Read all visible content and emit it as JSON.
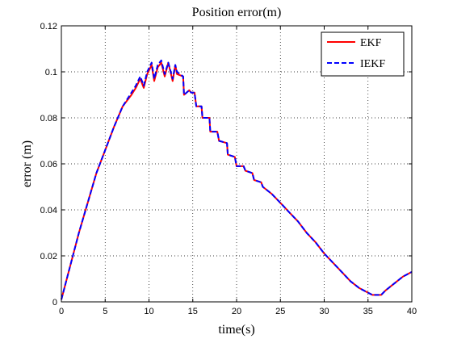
{
  "chart_data": {
    "type": "line",
    "title": "Position error(m)",
    "xlabel": "time(s)",
    "ylabel": "error (m)",
    "xlim": [
      0,
      40
    ],
    "ylim": [
      0,
      0.12
    ],
    "xticks": [
      "0",
      "5",
      "10",
      "15",
      "20",
      "25",
      "30",
      "35",
      "40"
    ],
    "yticks": [
      "0",
      "0.02",
      "0.04",
      "0.06",
      "0.08",
      "0.1",
      "0.12"
    ],
    "xtick_values": [
      0,
      5,
      10,
      15,
      20,
      25,
      30,
      35,
      40
    ],
    "ytick_values": [
      0,
      0.02,
      0.04,
      0.06,
      0.08,
      0.1,
      0.12
    ],
    "grid": true,
    "legend_position": "top-right",
    "series": [
      {
        "name": "EKF",
        "color": "#ff0000",
        "style": "solid",
        "x": [
          0,
          2,
          4,
          5,
          6,
          7,
          8,
          8.5,
          9,
          9.4,
          9.8,
          10.3,
          10.6,
          11,
          11.4,
          11.8,
          12.2,
          12.7,
          13,
          13.2,
          13.9,
          14,
          14.6,
          14.8,
          15.2,
          15.4,
          16,
          16.1,
          16.9,
          17,
          17.8,
          18,
          18.9,
          19,
          19.8,
          20,
          20.8,
          21,
          21.8,
          22,
          22.8,
          23,
          24,
          25,
          26,
          27,
          28,
          29,
          30,
          31,
          32,
          33,
          34,
          35,
          35.5,
          36,
          36.5,
          37,
          38,
          39,
          40
        ],
        "values": [
          0.001,
          0.03,
          0.056,
          0.066,
          0.076,
          0.085,
          0.09,
          0.093,
          0.097,
          0.093,
          0.099,
          0.103,
          0.096,
          0.102,
          0.104,
          0.098,
          0.104,
          0.096,
          0.103,
          0.099,
          0.098,
          0.09,
          0.092,
          0.091,
          0.091,
          0.085,
          0.085,
          0.08,
          0.08,
          0.074,
          0.074,
          0.07,
          0.069,
          0.064,
          0.063,
          0.059,
          0.059,
          0.057,
          0.056,
          0.053,
          0.052,
          0.05,
          0.047,
          0.043,
          0.039,
          0.035,
          0.03,
          0.026,
          0.021,
          0.017,
          0.013,
          0.009,
          0.006,
          0.004,
          0.003,
          0.003,
          0.003,
          0.005,
          0.008,
          0.011,
          0.013
        ]
      },
      {
        "name": "IEKF",
        "color": "#0000ff",
        "style": "dashed",
        "x": [
          0,
          2,
          4,
          5,
          6,
          7,
          8,
          8.5,
          9,
          9.4,
          9.8,
          10.3,
          10.6,
          11,
          11.4,
          11.8,
          12.2,
          12.7,
          13,
          13.2,
          13.9,
          14,
          14.6,
          14.8,
          15.2,
          15.4,
          16,
          16.1,
          16.9,
          17,
          17.8,
          18,
          18.9,
          19,
          19.8,
          20,
          20.8,
          21,
          21.8,
          22,
          22.8,
          23,
          24,
          25,
          26,
          27,
          28,
          29,
          30,
          31,
          32,
          33,
          34,
          35,
          35.5,
          36,
          36.5,
          37,
          38,
          39,
          40
        ],
        "values": [
          0.001,
          0.03,
          0.056,
          0.066,
          0.076,
          0.085,
          0.091,
          0.094,
          0.098,
          0.094,
          0.1,
          0.104,
          0.097,
          0.103,
          0.105,
          0.099,
          0.104,
          0.097,
          0.103,
          0.1,
          0.098,
          0.09,
          0.092,
          0.091,
          0.091,
          0.085,
          0.085,
          0.08,
          0.08,
          0.074,
          0.074,
          0.07,
          0.069,
          0.064,
          0.063,
          0.059,
          0.059,
          0.057,
          0.056,
          0.053,
          0.052,
          0.05,
          0.047,
          0.043,
          0.039,
          0.035,
          0.03,
          0.026,
          0.021,
          0.017,
          0.013,
          0.009,
          0.006,
          0.004,
          0.003,
          0.003,
          0.003,
          0.005,
          0.008,
          0.011,
          0.013
        ]
      }
    ]
  }
}
